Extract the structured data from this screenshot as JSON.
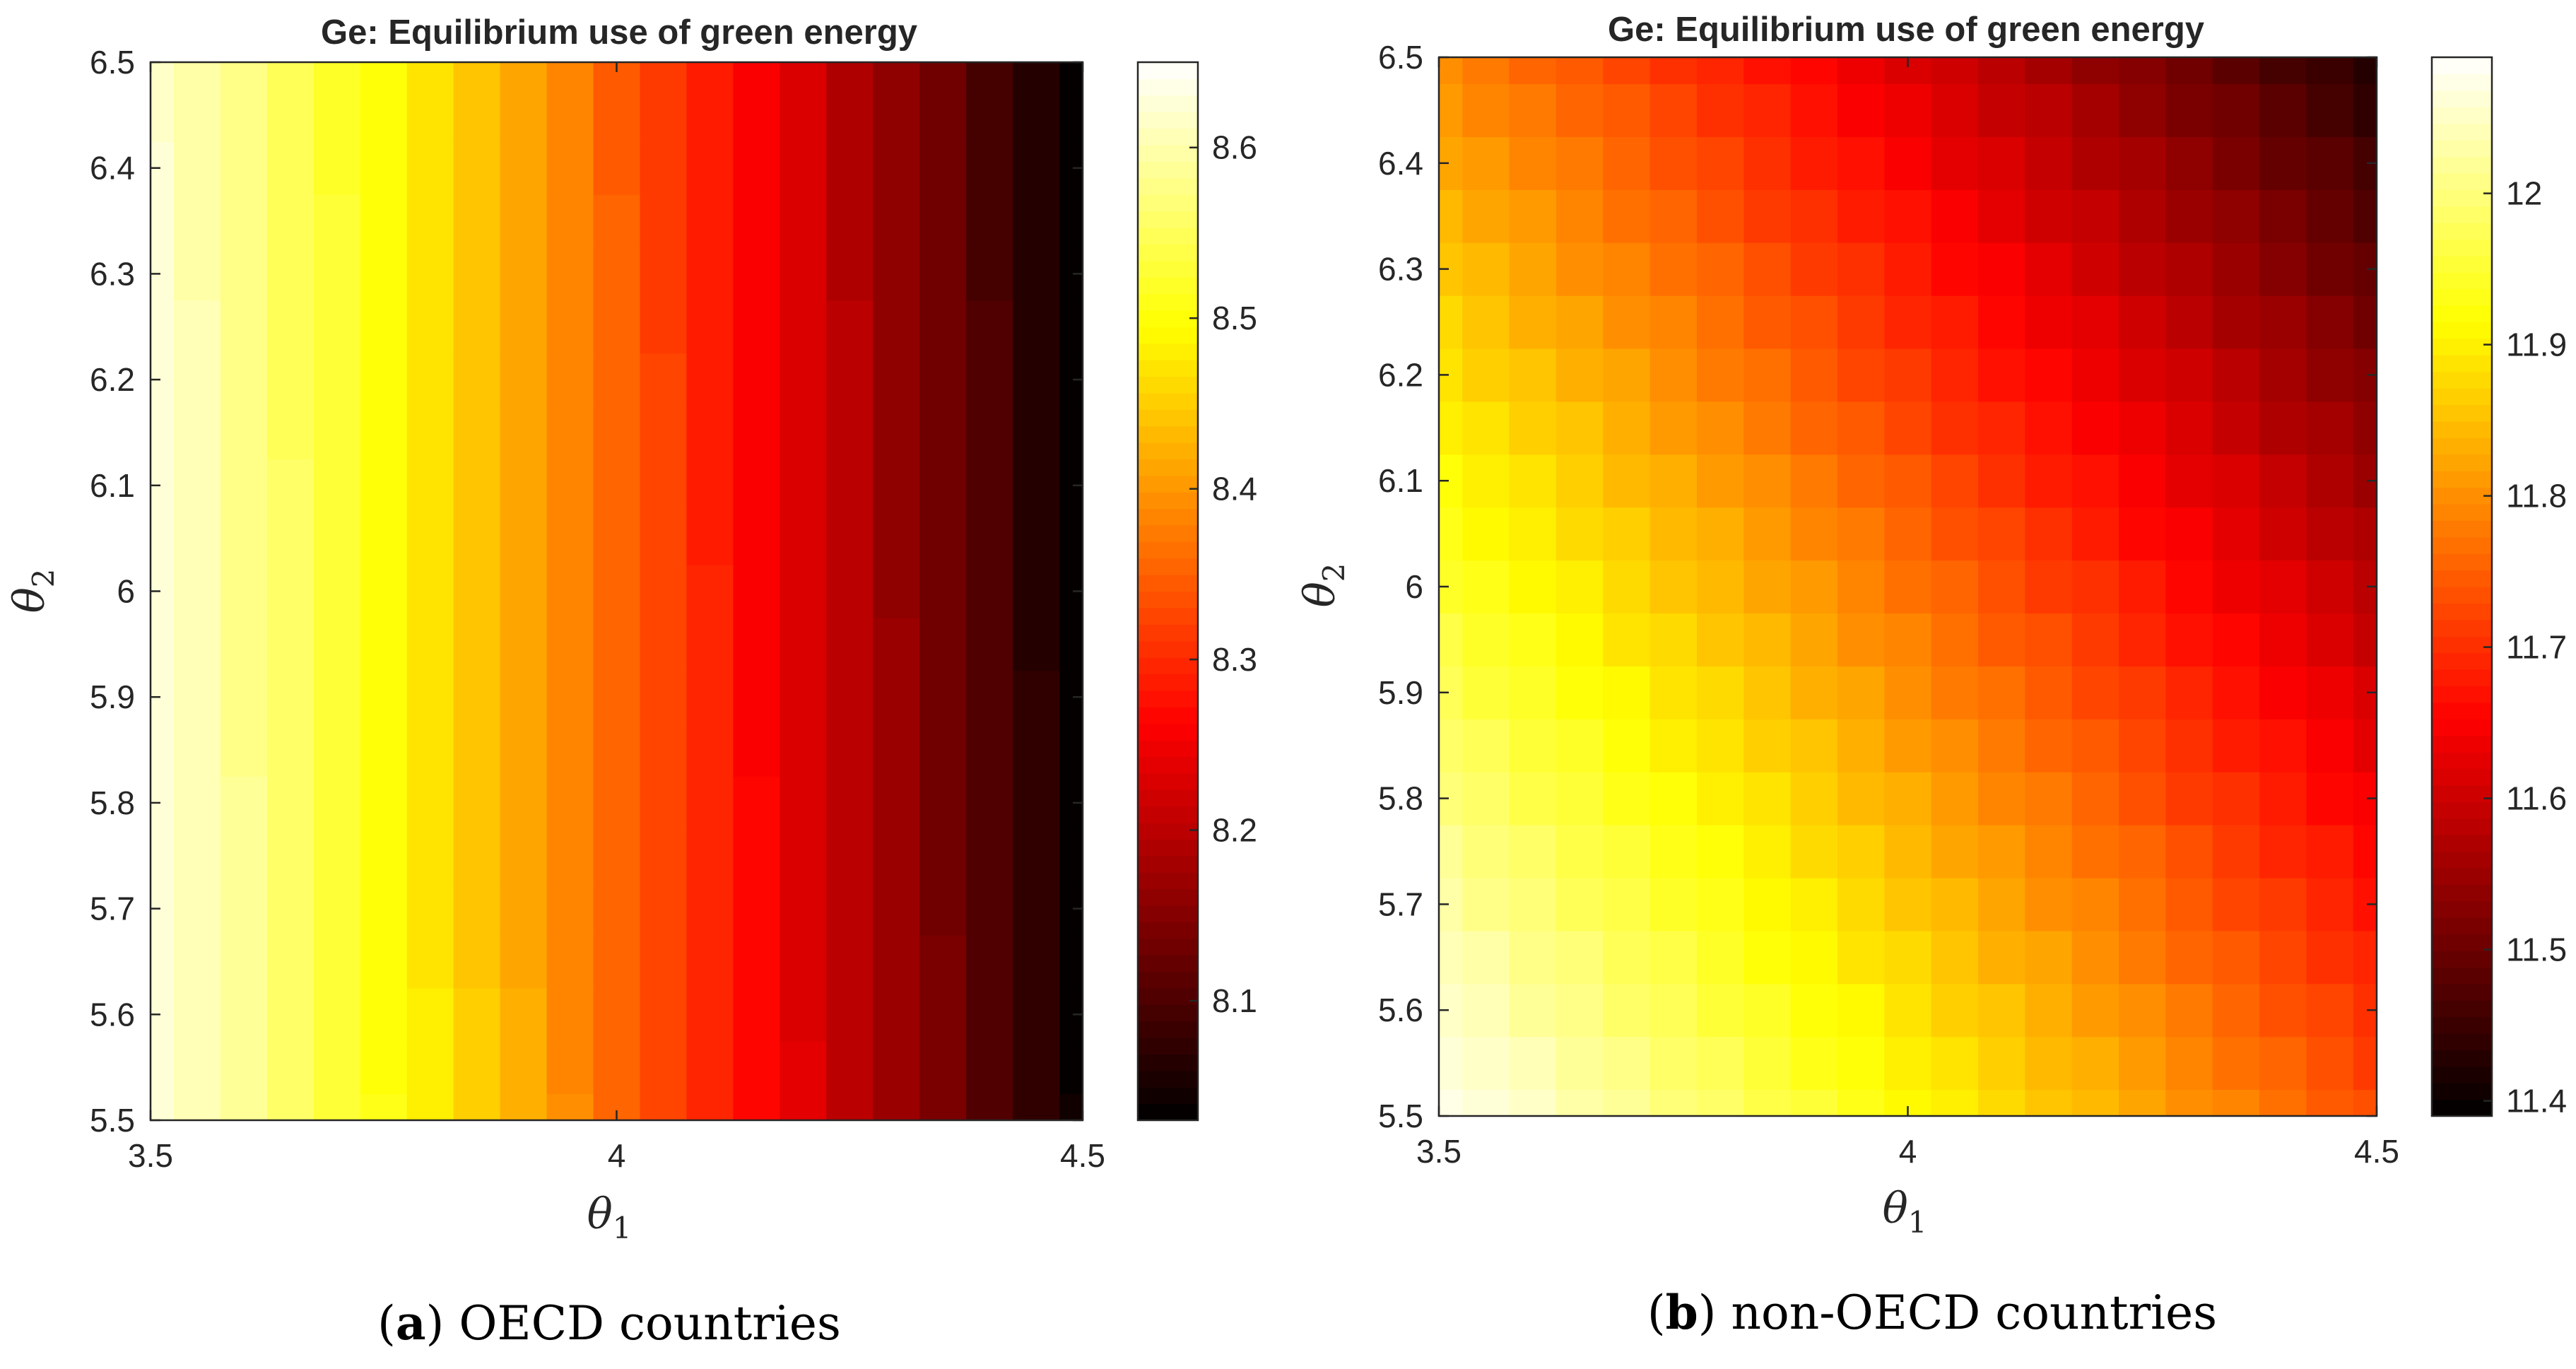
{
  "chart_data": [
    {
      "type": "heatmap",
      "title": "Ge: Equilibrium use of green energy",
      "xlabel": "θ",
      "xlabel_sub": "1",
      "ylabel": "θ",
      "ylabel_sub": "2",
      "xlim": [
        3.5,
        4.5
      ],
      "ylim": [
        5.5,
        6.5
      ],
      "x_ticks": [
        "3.5",
        "4",
        "4.5"
      ],
      "y_ticks": [
        "5.5",
        "5.6",
        "5.7",
        "5.8",
        "5.9",
        "6",
        "6.1",
        "6.2",
        "6.3",
        "6.4",
        "6.5"
      ],
      "colorbar_ticks": [
        "8.1",
        "8.2",
        "8.3",
        "8.4",
        "8.5",
        "8.6"
      ],
      "colorbar_range": [
        8.03,
        8.65
      ],
      "caption_letter": "a",
      "caption_text": "OECD countries",
      "colormap": "hot",
      "grid_size": [
        21,
        21
      ],
      "field": {
        "z_left": 8.63,
        "z_right": 8.04,
        "y_shift": 0.01
      }
    },
    {
      "type": "heatmap",
      "title": "Ge: Equilibrium use of green energy",
      "xlabel": "θ",
      "xlabel_sub": "1",
      "ylabel": "θ",
      "ylabel_sub": "2",
      "xlim": [
        3.5,
        4.5
      ],
      "ylim": [
        5.5,
        6.5
      ],
      "x_ticks": [
        "3.5",
        "4",
        "4.5"
      ],
      "y_ticks": [
        "5.5",
        "5.6",
        "5.7",
        "5.8",
        "5.9",
        "6",
        "6.1",
        "6.2",
        "6.3",
        "6.4",
        "6.5"
      ],
      "colorbar_ticks": [
        "11.4",
        "11.5",
        "11.6",
        "11.7",
        "11.8",
        "11.9",
        "12"
      ],
      "colorbar_range": [
        11.39,
        12.09
      ],
      "caption_letter": "b",
      "caption_text": "non-OECD countries",
      "colormap": "hot",
      "grid_size": [
        21,
        21
      ],
      "field": {
        "z_corner_low": 12.07,
        "z_corner_high": 11.42
      }
    }
  ]
}
